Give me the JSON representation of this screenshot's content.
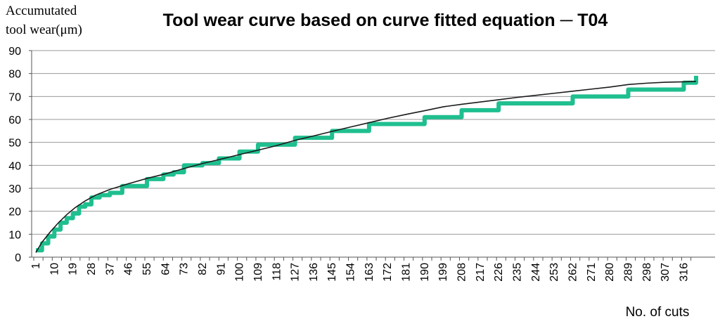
{
  "chart_data": {
    "type": "line",
    "title": "Tool wear curve based on curve fitted equation ─ T04",
    "ylabel_lines": [
      "Accumutated",
      "tool wear(μm)"
    ],
    "xlabel": "No. of cuts",
    "ylim": [
      0,
      90
    ],
    "yticks": [
      0,
      10,
      20,
      30,
      40,
      50,
      60,
      70,
      80,
      90
    ],
    "xlim": [
      1,
      322
    ],
    "xticks": [
      1,
      10,
      19,
      28,
      37,
      46,
      55,
      64,
      73,
      82,
      91,
      100,
      109,
      118,
      127,
      136,
      145,
      154,
      163,
      172,
      181,
      190,
      199,
      208,
      217,
      226,
      235,
      244,
      253,
      262,
      271,
      280,
      289,
      298,
      307,
      316
    ],
    "grid": "horizontal",
    "series": [
      {
        "color": "#1fbf8f",
        "style": "step",
        "x": [
          1,
          4,
          7,
          10,
          13,
          16,
          19,
          22,
          25,
          28,
          32,
          37,
          43,
          50,
          55,
          63,
          68,
          73,
          82,
          90,
          100,
          108,
          109,
          118,
          127,
          136,
          145,
          154,
          163,
          172,
          190,
          208,
          226,
          262,
          289,
          316,
          319,
          322
        ],
        "y": [
          3,
          6,
          9,
          12,
          15,
          17,
          19,
          22,
          23,
          26,
          27,
          28,
          31,
          31,
          34,
          36,
          37,
          40,
          41,
          43,
          46,
          46,
          49,
          49,
          52,
          52,
          55,
          55,
          58,
          58,
          61,
          64,
          67,
          70,
          73,
          76,
          76,
          79
        ]
      },
      {
        "color": "#1a1a1a",
        "style": "smooth",
        "x": [
          1,
          4,
          8,
          12,
          16,
          20,
          25,
          30,
          37,
          46,
          55,
          64,
          73,
          82,
          91,
          100,
          109,
          118,
          127,
          136,
          145,
          154,
          163,
          172,
          181,
          190,
          199,
          208,
          217,
          226,
          235,
          244,
          253,
          262,
          271,
          280,
          289,
          298,
          307,
          316,
          322
        ],
        "y": [
          2,
          6.5,
          11,
          15,
          18.5,
          21.5,
          24.5,
          27,
          29.5,
          32,
          34.3,
          36.3,
          38.6,
          40.8,
          42.7,
          44.7,
          46.6,
          48.6,
          50.9,
          52.8,
          54.8,
          56.7,
          58.6,
          60.5,
          62.2,
          63.8,
          65.5,
          66.6,
          67.6,
          68.6,
          69.6,
          70.5,
          71.4,
          72.3,
          73.2,
          74.1,
          75.2,
          75.8,
          76.2,
          76.4,
          76.6
        ]
      }
    ]
  }
}
